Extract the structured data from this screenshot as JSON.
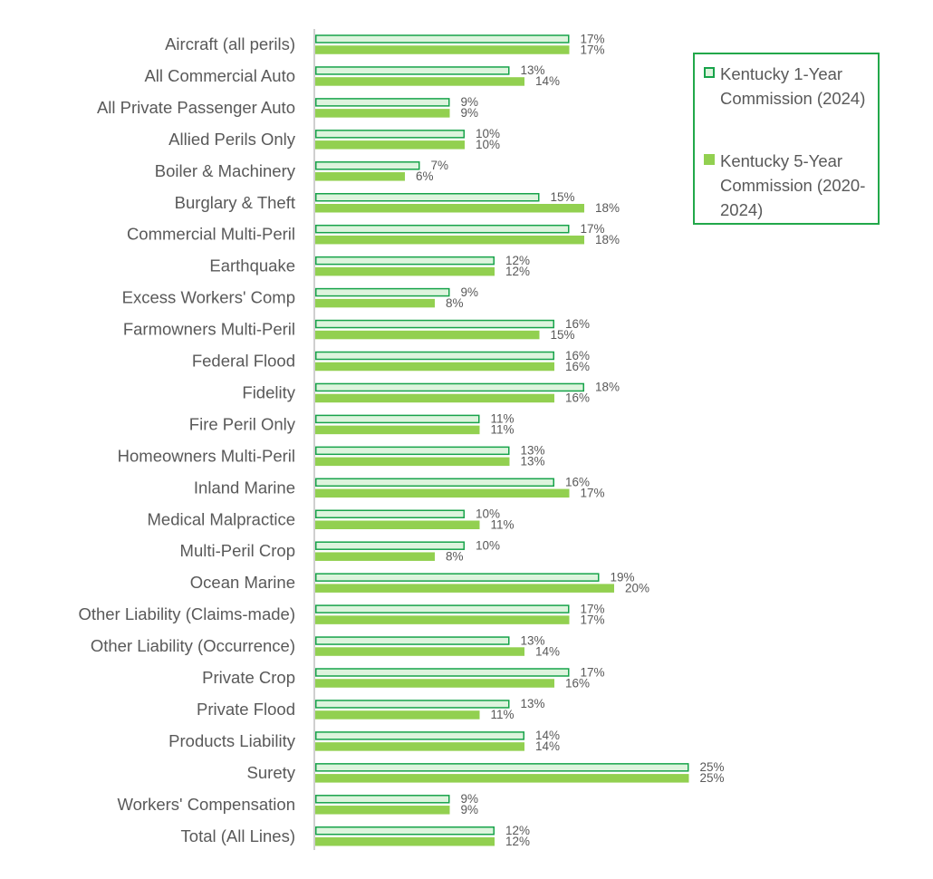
{
  "chart_data": {
    "type": "bar",
    "orientation": "horizontal",
    "categories": [
      "Aircraft (all perils)",
      "All Commercial Auto",
      "All Private Passenger Auto",
      "Allied Perils Only",
      "Boiler & Machinery",
      "Burglary & Theft",
      "Commercial Multi-Peril",
      "Earthquake",
      "Excess Workers' Comp",
      "Farmowners Multi-Peril",
      "Federal Flood",
      "Fidelity",
      "Fire Peril Only",
      "Homeowners Multi-Peril",
      "Inland Marine",
      "Medical Malpractice",
      "Multi-Peril Crop",
      "Ocean Marine",
      "Other Liability (Claims-made)",
      "Other Liability (Occurrence)",
      "Private Crop",
      "Private Flood",
      "Products Liability",
      "Surety",
      "Workers' Compensation",
      "Total (All Lines)"
    ],
    "series": [
      {
        "name": "Kentucky 1-Year Commission (2024)",
        "fill": "#DDF4DD",
        "stroke": "#17A34A",
        "values": [
          17,
          13,
          9,
          10,
          7,
          15,
          17,
          12,
          9,
          16,
          16,
          18,
          11,
          13,
          16,
          10,
          10,
          19,
          17,
          13,
          17,
          13,
          14,
          25,
          9,
          12
        ],
        "labels": [
          "17%",
          "13%",
          "9%",
          "10%",
          "7%",
          "15%",
          "17%",
          "12%",
          "9%",
          "16%",
          "16%",
          "18%",
          "11%",
          "13%",
          "16%",
          "10%",
          "10%",
          "19%",
          "17%",
          "13%",
          "17%",
          "13%",
          "14%",
          "25%",
          "9%",
          "12%"
        ]
      },
      {
        "name": "Kentucky 5-Year Commission (2020-2024)",
        "fill": "#92D050",
        "stroke": "#92D050",
        "values": [
          17,
          14,
          9,
          10,
          6,
          18,
          18,
          12,
          8,
          15,
          16,
          16,
          11,
          13,
          17,
          11,
          8,
          20,
          17,
          14,
          16,
          11,
          14,
          25,
          9,
          12
        ],
        "labels": [
          "17%",
          "14%",
          "9%",
          "10%",
          "6%",
          "18%",
          "18%",
          "12%",
          "8%",
          "15%",
          "16%",
          "16%",
          "11%",
          "13%",
          "17%",
          "11%",
          "8%",
          "20%",
          "17%",
          "14%",
          "16%",
          "11%",
          "14%",
          "25%",
          "9%",
          "12%"
        ]
      }
    ],
    "title": "",
    "xlabel": "",
    "ylabel": "",
    "value_axis_visible": false,
    "grid": false,
    "legend_position": "top-right",
    "colors": {
      "axis": "#BFBFBF",
      "text": "#595959",
      "legend_border": "#22A84A"
    }
  },
  "legend": {
    "items": [
      {
        "label": "Kentucky 1-Year Commission (2024)"
      },
      {
        "label": "Kentucky 5-Year Commission (2020-2024)"
      }
    ]
  }
}
